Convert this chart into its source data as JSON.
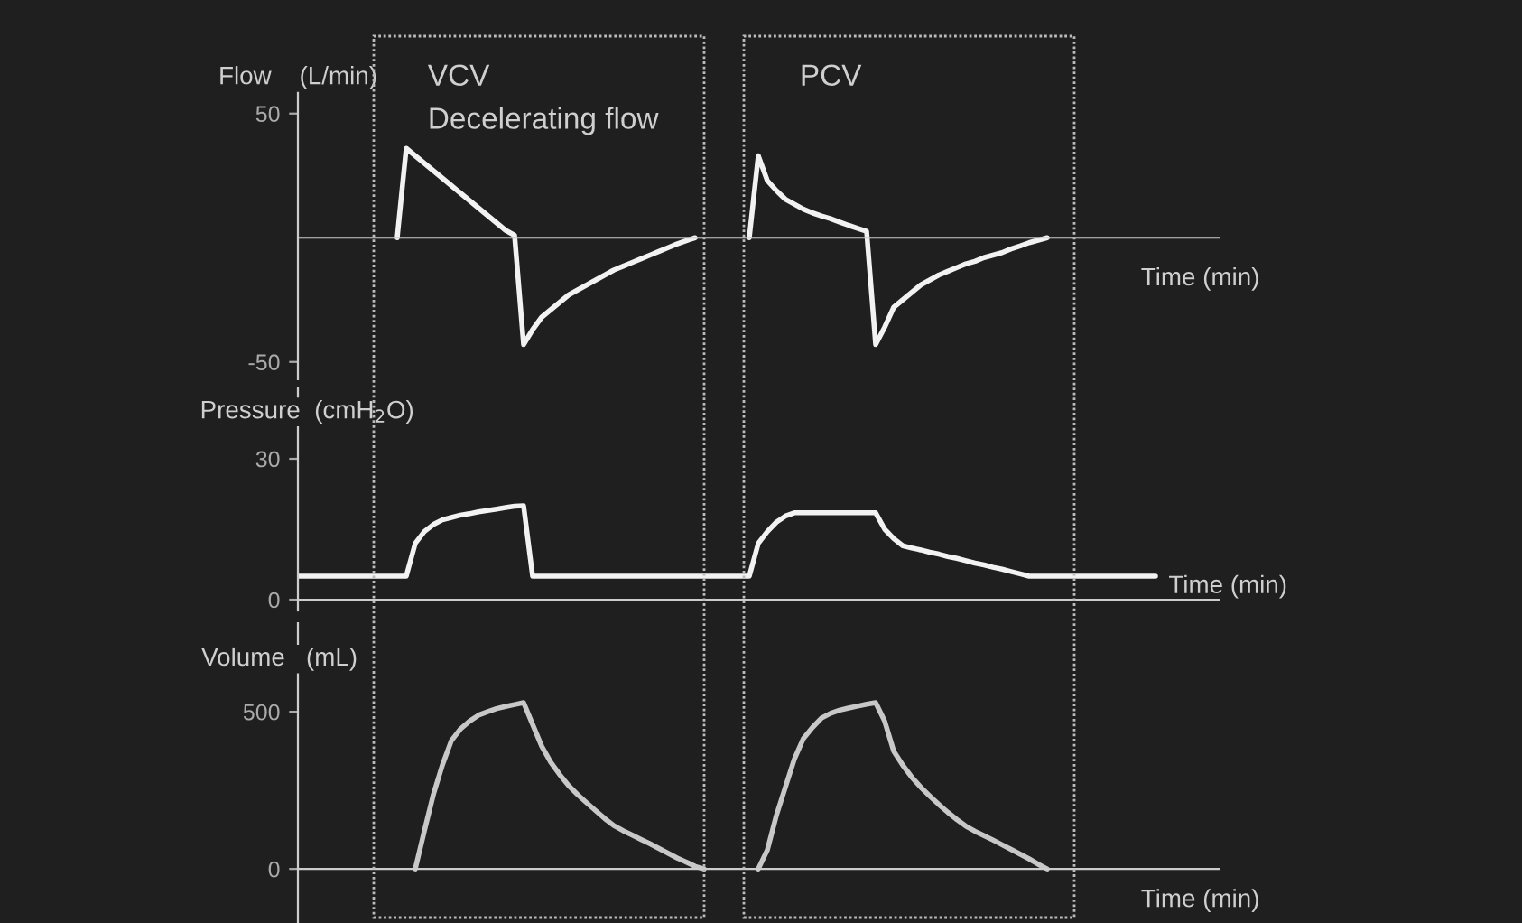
{
  "chart_data": [
    {
      "type": "line",
      "ylabel": "Flow    (L/min)",
      "xlabel": "Time (min)",
      "tick_labels": "y",
      "annotations": [
        "VCV",
        "Decelerating flow",
        "PCV"
      ],
      "categories": [
        null,
        null,
        null,
        null,
        null,
        null,
        null,
        null,
        null,
        null,
        null,
        null,
        null,
        null,
        null,
        null,
        null,
        null,
        null,
        null,
        null,
        null,
        null,
        null,
        null,
        null,
        null,
        null,
        null,
        null,
        null,
        null,
        null,
        null,
        null,
        null,
        null,
        null,
        null,
        null,
        null,
        null,
        null,
        null,
        null,
        null,
        null,
        null,
        null,
        null,
        null,
        null,
        null,
        null,
        null,
        null,
        null,
        null,
        null,
        null,
        null,
        null,
        null,
        null,
        null,
        null,
        null,
        null,
        null,
        null,
        null,
        null,
        null,
        null,
        null,
        null,
        null,
        null,
        null,
        null,
        null,
        null,
        null,
        null,
        null,
        null,
        null,
        null,
        null,
        null,
        null,
        null,
        null,
        null,
        null,
        null,
        null,
        null,
        null,
        null,
        null,
        null,
        null
      ],
      "series": [
        {
          "color": "#f2f2f2",
          "values": [
            null,
            null,
            null,
            null,
            null,
            null,
            null,
            null,
            null,
            null,
            null,
            0,
            36,
            33,
            30,
            27,
            24,
            21,
            18,
            15,
            12,
            9,
            6,
            3,
            1,
            -43,
            -37,
            -32,
            -29,
            -26,
            -23,
            -21,
            -19,
            -17,
            -15,
            -13,
            -11.5,
            -10,
            -8.5,
            -7,
            -5.5,
            -4,
            -2.5,
            -1.2,
            0,
            null,
            null,
            null,
            null,
            null,
            0,
            33,
            23,
            19,
            15.5,
            13.5,
            11.5,
            10,
            8.8,
            7.7,
            6.3,
            5,
            3.8,
            2.6,
            -43,
            -36,
            -28,
            -25,
            -22,
            -19,
            -17,
            -15,
            -13.5,
            -12,
            -10.5,
            -9.5,
            -8,
            -7,
            -6,
            -4.5,
            -3.3,
            -2,
            -1,
            0,
            null,
            null,
            null,
            null,
            null,
            null,
            null,
            null,
            null,
            null,
            null,
            null,
            null,
            null,
            null,
            null,
            null,
            null,
            null
          ]
        }
      ],
      "ylim": [
        -57,
        63
      ],
      "yticks": [
        50,
        -50
      ]
    },
    {
      "type": "line",
      "ylabel": "Pressure  (cmH$_{2}$O)",
      "xlabel": "Time (min)",
      "tick_labels": "y",
      "categories": [
        null,
        null,
        null,
        null,
        null,
        null,
        null,
        null,
        null,
        null,
        null,
        null,
        null,
        null,
        null,
        null,
        null,
        null,
        null,
        null,
        null,
        null,
        null,
        null,
        null,
        null,
        null,
        null,
        null,
        null,
        null,
        null,
        null,
        null,
        null,
        null,
        null,
        null,
        null,
        null,
        null,
        null,
        null,
        null,
        null,
        null,
        null,
        null,
        null,
        null,
        null,
        null,
        null,
        null,
        null,
        null,
        null,
        null,
        null,
        null,
        null,
        null,
        null,
        null,
        null,
        null,
        null,
        null,
        null,
        null,
        null,
        null,
        null,
        null,
        null,
        null,
        null,
        null,
        null,
        null,
        null,
        null,
        null,
        null,
        null,
        null,
        null,
        null,
        null,
        null,
        null,
        null,
        null,
        null,
        null,
        null,
        null,
        null,
        null,
        null,
        null,
        null,
        null
      ],
      "series": [
        {
          "color": "#f2f2f2",
          "values": [
            5,
            5,
            5,
            5,
            5,
            5,
            5,
            5,
            5,
            5,
            5,
            5,
            5,
            12,
            14.5,
            16,
            17,
            17.5,
            18,
            18.3,
            18.7,
            19,
            19.3,
            19.6,
            19.9,
            20,
            5,
            5,
            5,
            5,
            5,
            5,
            5,
            5,
            5,
            5,
            5,
            5,
            5,
            5,
            5,
            5,
            5,
            5,
            5,
            5,
            5,
            5,
            5,
            5,
            5,
            12,
            14.5,
            16.5,
            17.8,
            18.5,
            18.5,
            18.5,
            18.5,
            18.5,
            18.5,
            18.5,
            18.5,
            18.5,
            18.5,
            15,
            13,
            11.5,
            11,
            10.6,
            10.1,
            9.7,
            9.2,
            8.8,
            8.3,
            7.8,
            7.4,
            6.9,
            6.5,
            6,
            5.5,
            5,
            5,
            5,
            5,
            5,
            5,
            5,
            5,
            5,
            5,
            5,
            5,
            5,
            5,
            5,
            null,
            null,
            null,
            null,
            null,
            null,
            null
          ]
        }
      ],
      "ylim": [
        -2.3,
        45
      ],
      "yticks": [
        30,
        0
      ]
    },
    {
      "type": "line",
      "ylabel": "Volume   (mL)",
      "xlabel": "Time (min)",
      "tick_labels": "y",
      "categories": [
        null,
        null,
        null,
        null,
        null,
        null,
        null,
        null,
        null,
        null,
        null,
        null,
        null,
        null,
        null,
        null,
        null,
        null,
        null,
        null,
        null,
        null,
        null,
        null,
        null,
        null,
        null,
        null,
        null,
        null,
        null,
        null,
        null,
        null,
        null,
        null,
        null,
        null,
        null,
        null,
        null,
        null,
        null,
        null,
        null,
        null,
        null,
        null,
        null,
        null,
        null,
        null,
        null,
        null,
        null,
        null,
        null,
        null,
        null,
        null,
        null,
        null,
        null,
        null,
        null,
        null,
        null,
        null,
        null,
        null,
        null,
        null,
        null,
        null,
        null,
        null,
        null,
        null,
        null,
        null,
        null,
        null,
        null,
        null,
        null,
        null,
        null,
        null,
        null,
        null,
        null,
        null,
        null,
        null,
        null,
        null,
        null,
        null,
        null,
        null,
        null,
        null,
        null
      ],
      "series": [
        {
          "color": "#c8c8c8",
          "values": [
            null,
            null,
            null,
            null,
            null,
            null,
            null,
            null,
            null,
            null,
            null,
            null,
            null,
            0,
            120,
            236,
            330,
            408,
            445,
            470,
            489,
            500,
            510,
            517,
            523,
            529,
            460,
            391,
            340,
            300,
            265,
            236,
            210,
            185,
            160,
            138,
            122,
            108,
            94,
            80,
            65,
            50,
            35,
            22,
            8,
            0,
            null,
            null,
            null,
            null,
            null,
            0,
            60,
            170,
            260,
            350,
            415,
            450,
            480,
            495,
            505,
            512,
            518,
            524,
            529,
            470,
            375,
            330,
            292,
            260,
            232,
            205,
            180,
            157,
            136,
            120,
            106,
            92,
            77,
            62,
            47,
            32,
            15,
            0,
            null,
            null,
            null,
            null,
            null,
            null,
            null,
            null,
            null,
            null,
            null,
            null,
            null,
            null,
            null,
            null,
            null,
            null,
            null
          ]
        }
      ],
      "ylim": [
        -172,
        782
      ],
      "yticks": [
        500,
        0
      ]
    }
  ]
}
